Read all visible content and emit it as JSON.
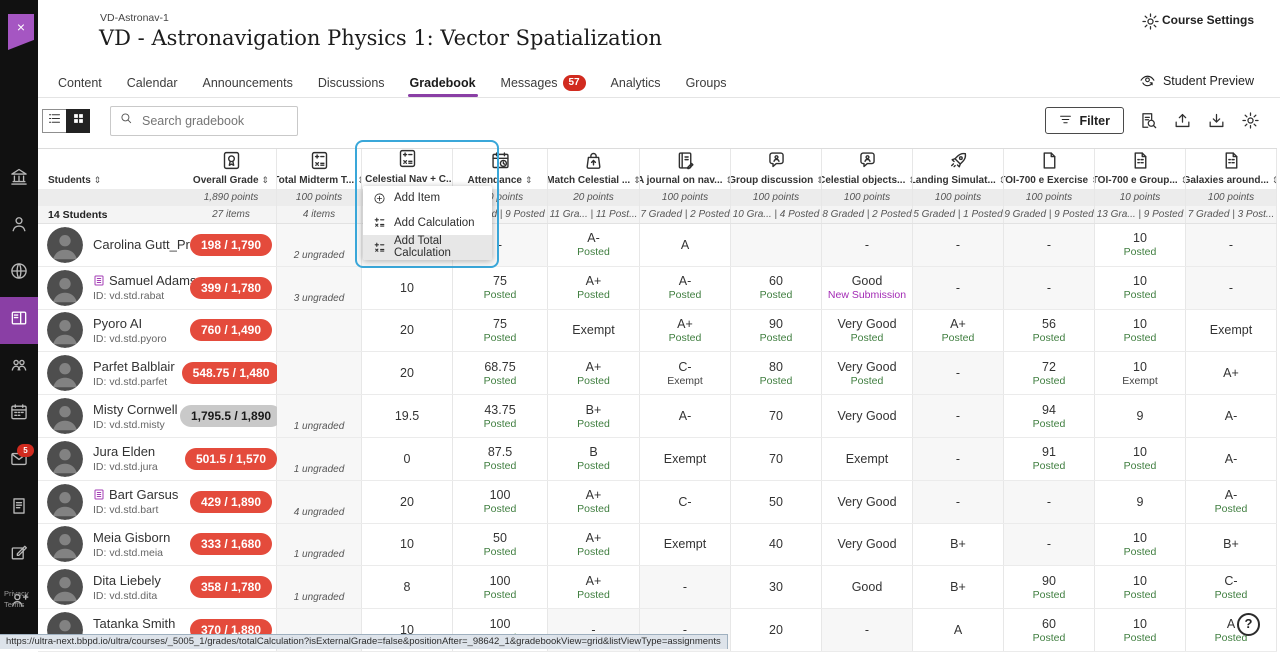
{
  "header": {
    "breadcrumb": "VD-Astronav-1",
    "title": "VD - Astronavigation Physics 1: Vector Spatialization",
    "course_settings_label": "Course Settings",
    "student_preview_label": "Student Preview"
  },
  "tabs": [
    {
      "label": "Content"
    },
    {
      "label": "Calendar"
    },
    {
      "label": "Announcements"
    },
    {
      "label": "Discussions"
    },
    {
      "label": "Gradebook",
      "active": true
    },
    {
      "label": "Messages",
      "badge": "57"
    },
    {
      "label": "Analytics"
    },
    {
      "label": "Groups"
    }
  ],
  "sidebar": {
    "close_label": "×",
    "items": [
      {
        "icon": "institution"
      },
      {
        "icon": "profile"
      },
      {
        "icon": "globe"
      },
      {
        "icon": "courses",
        "active": true
      },
      {
        "icon": "organizations"
      },
      {
        "icon": "calendar"
      },
      {
        "icon": "messages",
        "badge": "5"
      },
      {
        "icon": "activity"
      },
      {
        "icon": "grades"
      },
      {
        "icon": "groups"
      }
    ],
    "footer": [
      "Privacy",
      "Terms"
    ]
  },
  "toolbar": {
    "search_placeholder": "Search gradebook",
    "filter_label": "Filter"
  },
  "students_col": {
    "label": "Students",
    "summary": "14 Students"
  },
  "columns": [
    {
      "key": "overall",
      "icon": "medal",
      "label": "Overall Grade",
      "points": "1,890 points",
      "sub": "27 items"
    },
    {
      "key": "midterm",
      "icon": "calc",
      "label": "Total Midterm T...",
      "points": "100 points",
      "sub": "4 items"
    },
    {
      "key": "celnav",
      "icon": "calc",
      "label": "Celestial Nav + C...",
      "points": "",
      "sub": "",
      "excluded": true
    },
    {
      "key": "attendance",
      "icon": "calclock",
      "label": "Attendance",
      "points": "100 points",
      "sub": "9 Graded | 9 Posted"
    },
    {
      "key": "match",
      "icon": "test",
      "label": "Match Celestial ...",
      "points": "20 points",
      "sub": "11 Gra... | 11 Post..."
    },
    {
      "key": "journal",
      "icon": "journal",
      "label": "A journal on nav...",
      "points": "100 points",
      "sub": "7 Graded | 2 Posted"
    },
    {
      "key": "group",
      "icon": "chat",
      "label": "Group discussion",
      "points": "100 points",
      "sub": "10 Gra... | 4 Posted"
    },
    {
      "key": "celobj",
      "icon": "chat",
      "label": "Celestial objects...",
      "points": "100 points",
      "sub": "8 Graded | 2 Posted"
    },
    {
      "key": "landing",
      "icon": "rocket",
      "label": "Landing Simulat...",
      "points": "100 points",
      "sub": "5 Graded | 1 Posted"
    },
    {
      "key": "toiex",
      "icon": "doc",
      "label": "TOI-700 e Exercise",
      "points": "100 points",
      "sub": "9 Graded | 9 Posted"
    },
    {
      "key": "toigrp",
      "icon": "doclist",
      "label": "TOI-700 e Group...",
      "points": "10 points",
      "sub": "13 Gra... | 9 Posted"
    },
    {
      "key": "galaxies",
      "icon": "doclist",
      "label": "Galaxies around...",
      "points": "100 points",
      "sub": "7 Graded | 3 Post..."
    }
  ],
  "column_menu": {
    "items": [
      {
        "icon": "pluscircle",
        "label": "Add Item"
      },
      {
        "icon": "calcmini",
        "label": "Add Calculation"
      },
      {
        "icon": "calcmini",
        "label": "Add Total Calculation",
        "hover": true
      }
    ]
  },
  "students": [
    {
      "name": "Carolina Gutt_Prev...",
      "id": "",
      "grade": "198 / 1,790",
      "grade_status": "danger",
      "cells": {
        "midterm": {
          "note": "2 ungraded"
        },
        "celnav": {},
        "attendance": {
          "v": "-"
        },
        "match": {
          "v": "A-",
          "s": "Posted"
        },
        "journal": {
          "v": "A"
        },
        "group": {},
        "celobj": {
          "v": "-"
        },
        "landing": {
          "v": "-"
        },
        "toiex": {
          "v": "-"
        },
        "toigrp": {
          "v": "10",
          "s": "Posted"
        },
        "galaxies": {
          "v": "-"
        }
      }
    },
    {
      "name": "Samuel Adams",
      "id": "ID: vd.std.rabat",
      "flagged": true,
      "grade": "399 / 1,780",
      "grade_status": "danger",
      "cells": {
        "midterm": {
          "note": "3 ungraded"
        },
        "celnav": {
          "v": "10"
        },
        "attendance": {
          "v": "75",
          "s": "Posted"
        },
        "match": {
          "v": "A+",
          "s": "Posted"
        },
        "journal": {
          "v": "A-",
          "s": "Posted"
        },
        "group": {
          "v": "60",
          "s": "Posted"
        },
        "celobj": {
          "v": "Good",
          "s": "New Submission"
        },
        "landing": {
          "v": "-"
        },
        "toiex": {
          "v": "-"
        },
        "toigrp": {
          "v": "10",
          "s": "Posted"
        },
        "galaxies": {
          "v": "-"
        }
      }
    },
    {
      "name": "Pyoro AI",
      "id": "ID: vd.std.pyoro",
      "grade": "760 / 1,490",
      "grade_status": "danger",
      "cells": {
        "midterm": {},
        "celnav": {
          "v": "20"
        },
        "attendance": {
          "v": "75",
          "s": "Posted"
        },
        "match": {
          "v": "Exempt"
        },
        "journal": {
          "v": "A+",
          "s": "Posted"
        },
        "group": {
          "v": "90",
          "s": "Posted"
        },
        "celobj": {
          "v": "Very Good",
          "s": "Posted"
        },
        "landing": {
          "v": "A+",
          "s": "Posted"
        },
        "toiex": {
          "v": "56",
          "s": "Posted"
        },
        "toigrp": {
          "v": "10",
          "s": "Posted"
        },
        "galaxies": {
          "v": "Exempt"
        }
      }
    },
    {
      "name": "Parfet Balblair",
      "id": "ID: vd.std.parfet",
      "grade": "548.75 / 1,480",
      "grade_status": "danger",
      "cells": {
        "midterm": {},
        "celnav": {
          "v": "20"
        },
        "attendance": {
          "v": "68.75",
          "s": "Posted"
        },
        "match": {
          "v": "A+",
          "s": "Posted"
        },
        "journal": {
          "v": "C-",
          "s": "Exempt"
        },
        "group": {
          "v": "80",
          "s": "Posted"
        },
        "celobj": {
          "v": "Very Good",
          "s": "Posted"
        },
        "landing": {
          "v": "-"
        },
        "toiex": {
          "v": "72",
          "s": "Posted"
        },
        "toigrp": {
          "v": "10",
          "s": "Exempt"
        },
        "galaxies": {
          "v": "A+"
        }
      }
    },
    {
      "name": "Misty Cornwell",
      "id": "ID: vd.std.misty",
      "grade": "1,795.5 / 1,890",
      "grade_status": "neutral",
      "cells": {
        "midterm": {
          "note": "1 ungraded"
        },
        "celnav": {
          "v": "19.5"
        },
        "attendance": {
          "v": "43.75",
          "s": "Posted"
        },
        "match": {
          "v": "B+",
          "s": "Posted"
        },
        "journal": {
          "v": "A-"
        },
        "group": {
          "v": "70"
        },
        "celobj": {
          "v": "Very Good"
        },
        "landing": {
          "v": "-"
        },
        "toiex": {
          "v": "94",
          "s": "Posted"
        },
        "toigrp": {
          "v": "9"
        },
        "galaxies": {
          "v": "A-"
        }
      }
    },
    {
      "name": "Jura Elden",
      "id": "ID: vd.std.jura",
      "grade": "501.5 / 1,570",
      "grade_status": "danger",
      "cells": {
        "midterm": {
          "note": "1 ungraded"
        },
        "celnav": {
          "v": "0"
        },
        "attendance": {
          "v": "87.5",
          "s": "Posted"
        },
        "match": {
          "v": "B",
          "s": "Posted"
        },
        "journal": {
          "v": "Exempt"
        },
        "group": {
          "v": "70"
        },
        "celobj": {
          "v": "Exempt"
        },
        "landing": {
          "v": "-"
        },
        "toiex": {
          "v": "91",
          "s": "Posted"
        },
        "toigrp": {
          "v": "10",
          "s": "Posted"
        },
        "galaxies": {
          "v": "A-"
        }
      }
    },
    {
      "name": "Bart Garsus",
      "id": "ID: vd.std.bart",
      "flagged": true,
      "grade": "429 / 1,890",
      "grade_status": "danger",
      "cells": {
        "midterm": {
          "note": "4 ungraded"
        },
        "celnav": {
          "v": "20"
        },
        "attendance": {
          "v": "100",
          "s": "Posted"
        },
        "match": {
          "v": "A+",
          "s": "Posted"
        },
        "journal": {
          "v": "C-"
        },
        "group": {
          "v": "50"
        },
        "celobj": {
          "v": "Very Good"
        },
        "landing": {
          "v": "-"
        },
        "toiex": {
          "v": "-"
        },
        "toigrp": {
          "v": "9"
        },
        "galaxies": {
          "v": "A-",
          "s": "Posted"
        }
      }
    },
    {
      "name": "Meia Gisborn",
      "id": "ID: vd.std.meia",
      "grade": "333 / 1,680",
      "grade_status": "danger",
      "cells": {
        "midterm": {
          "note": "1 ungraded"
        },
        "celnav": {
          "v": "10"
        },
        "attendance": {
          "v": "50",
          "s": "Posted"
        },
        "match": {
          "v": "A+",
          "s": "Posted"
        },
        "journal": {
          "v": "Exempt"
        },
        "group": {
          "v": "40"
        },
        "celobj": {
          "v": "Very Good"
        },
        "landing": {
          "v": "B+"
        },
        "toiex": {
          "v": "-"
        },
        "toigrp": {
          "v": "10",
          "s": "Posted"
        },
        "galaxies": {
          "v": "B+"
        }
      }
    },
    {
      "name": "Dita Liebely",
      "id": "ID: vd.std.dita",
      "grade": "358 / 1,780",
      "grade_status": "danger",
      "cells": {
        "midterm": {
          "note": "1 ungraded"
        },
        "celnav": {
          "v": "8"
        },
        "attendance": {
          "v": "100",
          "s": "Posted"
        },
        "match": {
          "v": "A+",
          "s": "Posted"
        },
        "journal": {
          "v": "-"
        },
        "group": {
          "v": "30"
        },
        "celobj": {
          "v": "Good"
        },
        "landing": {
          "v": "B+"
        },
        "toiex": {
          "v": "90",
          "s": "Posted"
        },
        "toigrp": {
          "v": "10",
          "s": "Posted"
        },
        "galaxies": {
          "v": "C-",
          "s": "Posted"
        }
      }
    },
    {
      "name": "Tatanka Smith",
      "id": "ID: vd.std.tatanka",
      "grade": "370 / 1,880",
      "grade_status": "danger",
      "cells": {
        "midterm": {
          "note": "1 ungraded"
        },
        "celnav": {
          "v": "10"
        },
        "attendance": {
          "v": "100",
          "s": "Posted"
        },
        "match": {
          "v": "-"
        },
        "journal": {
          "v": "-"
        },
        "group": {
          "v": "20"
        },
        "celobj": {
          "v": "-"
        },
        "landing": {
          "v": "A"
        },
        "toiex": {
          "v": "60",
          "s": "Posted"
        },
        "toigrp": {
          "v": "10",
          "s": "Posted"
        },
        "galaxies": {
          "v": "A",
          "s": "Posted"
        }
      }
    }
  ],
  "statusbar": {
    "url": "https://ultra-next.bbpd.io/ultra/courses/_5005_1/grades/totalCalculation?isExternalGrade=false&positionAfter=_98642_1&gradebookView=grid&listViewType=assignments"
  },
  "help_label": "?"
}
